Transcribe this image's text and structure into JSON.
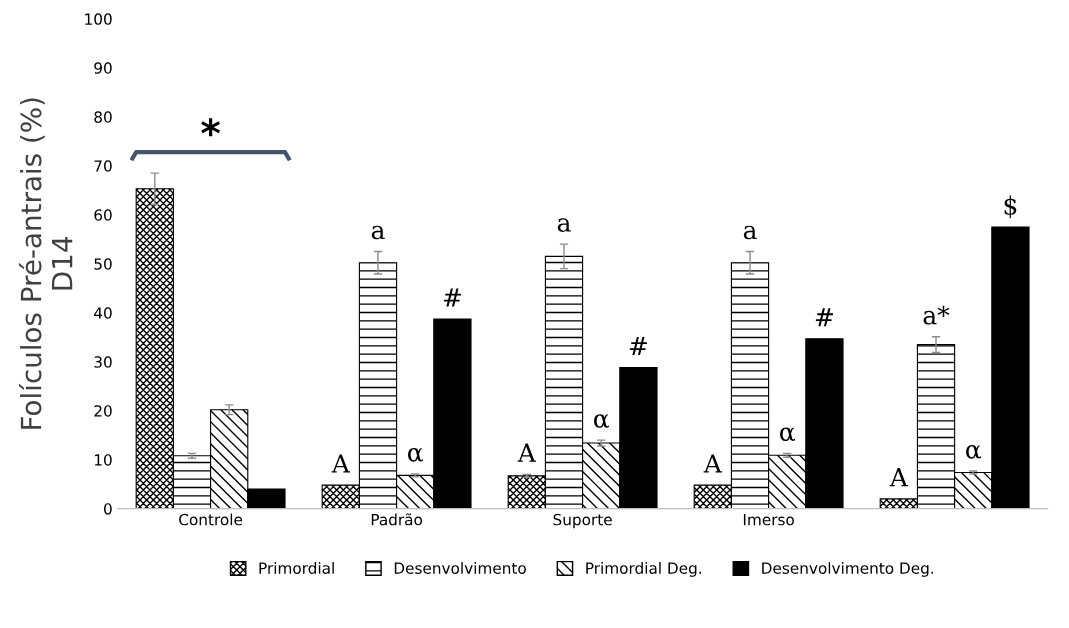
{
  "chart_data": {
    "type": "bar",
    "ylabel": "Folículos Pré-antrais (%)\nD14",
    "categories": [
      "Controle",
      "Padrão",
      "Suporte",
      "Imerso",
      null
    ],
    "series": [
      {
        "name": "Primordial",
        "color": "#000000",
        "values": [
          65.3,
          4.8,
          6.7,
          4.8,
          2.0
        ],
        "errors": [
          3.2,
          null,
          0.3,
          null,
          null
        ],
        "value_labels": [
          null,
          "A",
          "A",
          "A",
          "A"
        ]
      },
      {
        "name": "Desenvolvimento",
        "color": "#000000",
        "values": [
          10.8,
          50.2,
          51.5,
          50.2,
          33.5
        ],
        "errors": [
          0.5,
          2.3,
          2.5,
          2.3,
          1.6
        ],
        "value_labels": [
          null,
          "a",
          "a",
          "a",
          "a*"
        ]
      },
      {
        "name": "Primordial Deg.",
        "color": "#000000",
        "values": [
          20.2,
          6.8,
          13.4,
          10.9,
          7.4
        ],
        "errors": [
          1.0,
          0.3,
          0.6,
          0.4,
          0.3
        ],
        "value_labels": [
          null,
          "α",
          "α",
          "α",
          "α"
        ]
      },
      {
        "name": "Desenvolvimento Deg.",
        "color": "#000000",
        "values": [
          4.0,
          38.7,
          28.8,
          34.7,
          57.5
        ],
        "errors": [
          null,
          null,
          null,
          null,
          null
        ],
        "value_labels": [
          null,
          "#",
          "#",
          "#",
          "$"
        ]
      }
    ],
    "annotations": [
      "*"
    ],
    "ylim": [
      0,
      100
    ],
    "yticks": [
      0,
      10,
      20,
      30,
      40,
      50,
      60,
      70,
      80,
      90,
      100
    ],
    "grid": false,
    "legend": "bottom"
  }
}
